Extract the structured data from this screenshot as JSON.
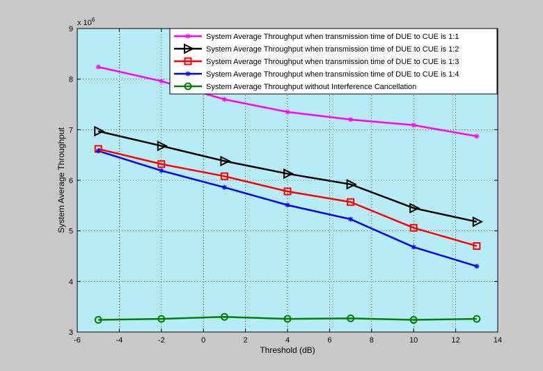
{
  "figure": {
    "background_color": "#c8c8c8",
    "plot_background_color": "#b7ebf6",
    "grid_color": "#000000"
  },
  "chart_data": {
    "type": "line",
    "title": "",
    "xlabel": "Threshold (dB)",
    "ylabel": "System Average Throughput",
    "y_exponent_label": "x 10",
    "y_exponent": "6",
    "xlim": [
      -6,
      14
    ],
    "ylim": [
      3,
      9
    ],
    "x_ticks": [
      -6,
      -4,
      -2,
      0,
      2,
      4,
      6,
      8,
      10,
      12,
      14
    ],
    "y_ticks": [
      3,
      4,
      5,
      6,
      7,
      8,
      9
    ],
    "grid": true,
    "grid_style": "dotted",
    "legend_position": "top-right",
    "x": [
      -5,
      -2,
      1,
      4,
      7,
      10,
      13
    ],
    "series": [
      {
        "name": "System Average Throughput when transmission time of DUE to CUE is 1:1",
        "values": [
          8.24,
          7.96,
          7.6,
          7.35,
          7.2,
          7.09,
          6.87
        ],
        "color": "#ff00ff",
        "marker": "asterisk"
      },
      {
        "name": "System Average Throughput when transmission time of DUE to CUE is 1:2",
        "values": [
          6.97,
          6.68,
          6.38,
          6.13,
          5.92,
          5.45,
          5.18
        ],
        "color": "#000000",
        "marker": "triangle-right"
      },
      {
        "name": "System Average Throughput when transmission time of DUE to CUE is 1:3",
        "values": [
          6.62,
          6.32,
          6.08,
          5.78,
          5.57,
          5.06,
          4.7
        ],
        "color": "#ff0000",
        "marker": "square"
      },
      {
        "name": "System Average Throughput when transmission time of DUE to CUE is 1:4",
        "values": [
          6.58,
          6.19,
          5.86,
          5.51,
          5.23,
          4.68,
          4.3
        ],
        "color": "#0000ff",
        "marker": "asterisk"
      },
      {
        "name": "System Average Throughput without Interference Cancellation",
        "values": [
          3.24,
          3.26,
          3.3,
          3.26,
          3.27,
          3.24,
          3.26
        ],
        "color": "#008000",
        "marker": "circle"
      }
    ]
  }
}
